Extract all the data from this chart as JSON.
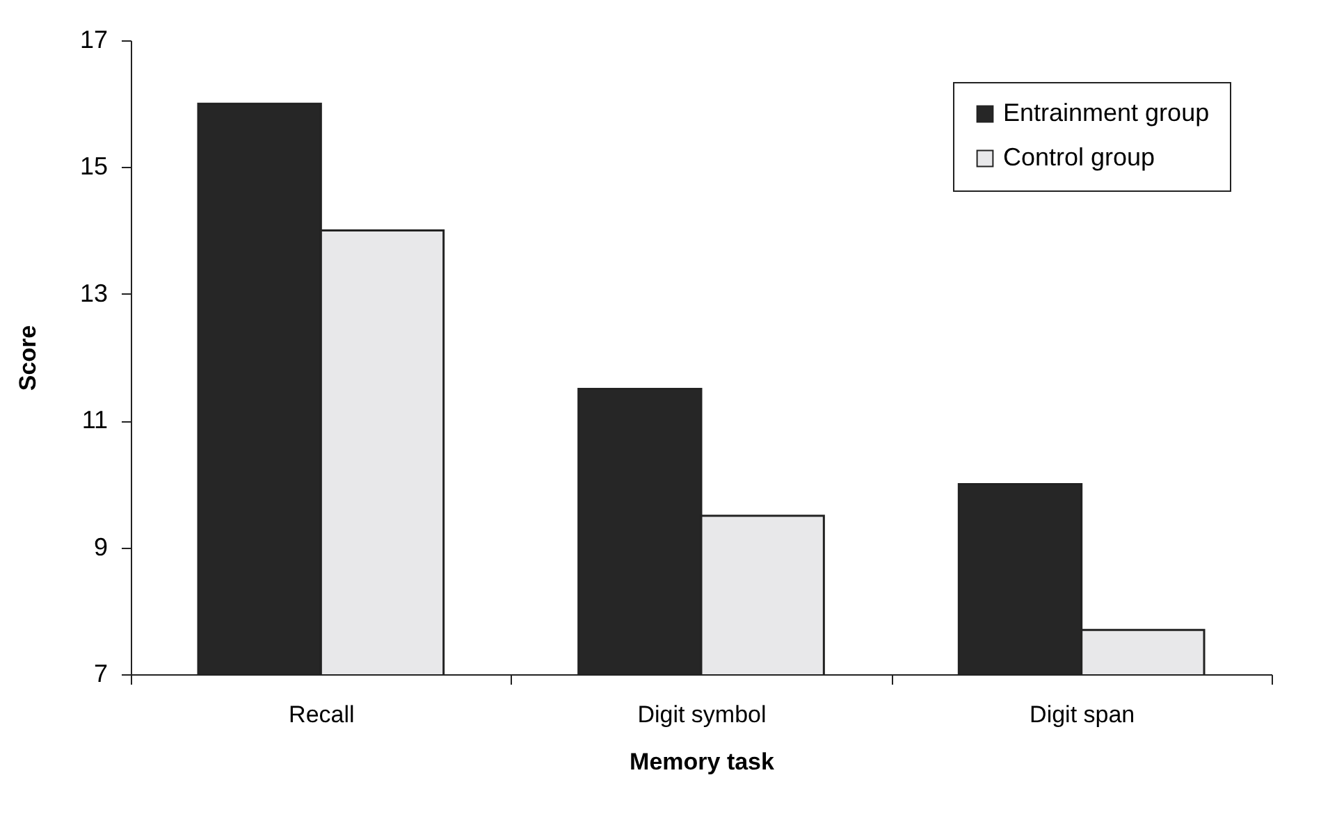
{
  "chart_data": {
    "type": "bar",
    "xlabel": "Memory task",
    "ylabel": "Score",
    "categories": [
      "Recall",
      "Digit symbol",
      "Digit span"
    ],
    "series": [
      {
        "name": "Entrainment group",
        "color": "#262626",
        "values": [
          16,
          11.5,
          10
        ]
      },
      {
        "name": "Control group",
        "color": "#e8e8ea",
        "values": [
          14,
          9.5,
          7.7
        ]
      }
    ],
    "ylim": [
      7,
      17
    ],
    "yticks": [
      7,
      9,
      11,
      13,
      15,
      17
    ],
    "grid": false,
    "legend": "top right"
  }
}
